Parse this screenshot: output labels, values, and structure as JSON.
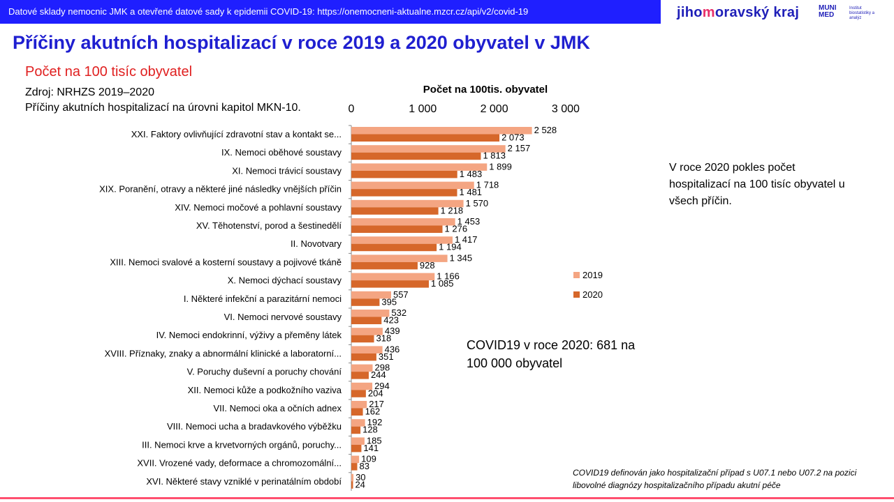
{
  "header": {
    "banner_text": "Datové sklady nemocnic JMK a otevřené datové sady k epidemii COVID-19: https://onemocneni-aktualne.mzcr.cz/api/v2/covid-19",
    "logo_jmk_pre": "jiho",
    "logo_jmk_hl": "m",
    "logo_jmk_post": "oravský kraj",
    "logo_muni_line1": "MUNI",
    "logo_muni_line2": "MED",
    "logo_muni_sub": "Institut biostatistiky a analýz"
  },
  "title": "Příčiny akutních hospitalizací v roce 2019 a 2020 obyvatel v JMK",
  "subtitle": "Počet na 100 tisíc obyvatel",
  "source": "Zdroj: NRHZS 2019–2020",
  "description": "Příčiny akutních hospitalizací na úrovni kapitol MKN-10.",
  "note_right": "V roce 2020 pokles počet hospitalizací na 100 tisíc obyvatel u všech příčin.",
  "note_covid": "COVID19 v roce 2020: 681 na 100 000 obyvatel",
  "footnote": "COVID19 definován jako hospitalizační případ s U07.1 nebo U07.2 na pozici libovolné diagnózy hospitalizačního případu akutní péče",
  "colors": {
    "s2019": "#f4a582",
    "s2020": "#d6672a",
    "title": "#1f1fd0",
    "banner": "#1f1fff",
    "subtitle": "#e02020"
  },
  "chart_data": {
    "type": "bar",
    "orientation": "horizontal",
    "title": "Počet na 100tis. obyvatel",
    "xlim": [
      0,
      3000
    ],
    "xticks": [
      0,
      1000,
      2000,
      3000
    ],
    "xtick_labels": [
      "0",
      "1 000",
      "2 000",
      "3 000"
    ],
    "legend_position": "right",
    "categories": [
      "XXI. Faktory ovlivňující zdravotní stav a kontakt se...",
      "IX. Nemoci oběhové soustavy",
      "XI. Nemoci trávicí soustavy",
      "XIX. Poranění, otravy a některé jiné následky vnějších příčin",
      "XIV. Nemoci močové a pohlavní soustavy",
      "XV. Těhotenství, porod a šestinedělí",
      "II. Novotvary",
      "XIII. Nemoci svalové a kosterní soustavy a pojivové tkáně",
      "X. Nemoci dýchací soustavy",
      "I. Některé infekční a parazitární nemoci",
      "VI. Nemoci nervové soustavy",
      "IV. Nemoci endokrinní, výživy a přeměny látek",
      "XVIII. Příznaky, znaky a abnormální klinické a laboratorní...",
      "V. Poruchy duševní a poruchy chování",
      "XII. Nemoci kůže a podkožního vaziva",
      "VII. Nemoci oka a očních adnex",
      "VIII. Nemoci ucha a bradavkového výběžku",
      "III. Nemoci krve a krvetvorných orgánů, poruchy...",
      "XVII. Vrozené vady, deformace a chromozomální...",
      "XVI. Některé stavy vzniklé v perinatálním období"
    ],
    "series": [
      {
        "name": "2019",
        "values": [
          2528,
          2157,
          1899,
          1718,
          1570,
          1453,
          1417,
          1345,
          1166,
          557,
          532,
          439,
          436,
          298,
          294,
          217,
          192,
          185,
          109,
          30
        ],
        "labels": [
          "2 528",
          "2 157",
          "1 899",
          "1 718",
          "1 570",
          "1 453",
          "1 417",
          "1 345",
          "1 166",
          "557",
          "532",
          "439",
          "436",
          "298",
          "294",
          "217",
          "192",
          "185",
          "109",
          "30"
        ]
      },
      {
        "name": "2020",
        "values": [
          2073,
          1813,
          1483,
          1481,
          1218,
          1276,
          1194,
          928,
          1085,
          395,
          423,
          318,
          351,
          244,
          204,
          162,
          128,
          141,
          83,
          24
        ],
        "labels": [
          "2 073",
          "1 813",
          "1 483",
          "1 481",
          "1 218",
          "1 276",
          "1 194",
          "928",
          "1 085",
          "395",
          "423",
          "318",
          "351",
          "244",
          "204",
          "162",
          "128",
          "141",
          "83",
          "24"
        ]
      }
    ]
  }
}
